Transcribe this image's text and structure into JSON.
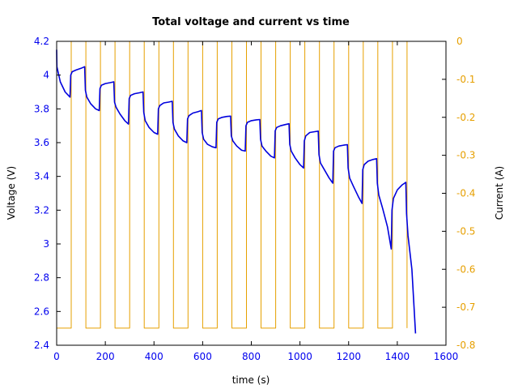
{
  "chart_data": {
    "type": "line",
    "title": "Total voltage and current vs time",
    "xlabel": "time (s)",
    "ylabel": "Voltage (V)",
    "y2label": "Current (A)",
    "xlim": [
      0,
      1600
    ],
    "ylim": [
      2.4,
      4.2
    ],
    "y2lim": [
      -0.8,
      0
    ],
    "x_ticks": [
      0,
      200,
      400,
      600,
      800,
      1000,
      1200,
      1400,
      1600
    ],
    "y_ticks": [
      2.4,
      2.6,
      2.8,
      3,
      3.2,
      3.4,
      3.6,
      3.8,
      4,
      4.2
    ],
    "y2_ticks": [
      -0.8,
      -0.7,
      -0.6,
      -0.5,
      -0.4,
      -0.3,
      -0.2,
      -0.1,
      0
    ],
    "y_tick_labels": [
      "2.4",
      "2.6",
      "2.8",
      "3",
      "3.2",
      "3.4",
      "3.6",
      "3.8",
      "4",
      "4.2"
    ],
    "x_tick_labels": [
      "0",
      "200",
      "400",
      "600",
      "800",
      "1000",
      "1200",
      "1400",
      "1600"
    ],
    "y2_tick_labels": [
      "-0.8",
      "-0.7",
      "-0.6",
      "-0.5",
      "-0.4",
      "-0.3",
      "-0.2",
      "-0.1",
      "0"
    ],
    "grid": false,
    "colors": {
      "voltage": "#0000dd",
      "current": "#e6a000",
      "left_axis": "#0000ee",
      "right_axis": "#e69f00"
    },
    "series": [
      {
        "axis": "left",
        "color": "#0000dd",
        "x": [
          0,
          1,
          15,
          35,
          55,
          58,
          64,
          80,
          100,
          115,
          118,
          124,
          140,
          160,
          175,
          178,
          184,
          200,
          220,
          235,
          238,
          244,
          260,
          280,
          295,
          298,
          304,
          320,
          340,
          355,
          358,
          364,
          380,
          400,
          415,
          418,
          424,
          440,
          460,
          475,
          478,
          484,
          500,
          520,
          535,
          538,
          544,
          560,
          580,
          595,
          598,
          604,
          620,
          640,
          655,
          658,
          664,
          680,
          700,
          715,
          718,
          724,
          740,
          760,
          775,
          778,
          784,
          800,
          820,
          835,
          838,
          844,
          860,
          880,
          895,
          898,
          904,
          920,
          940,
          955,
          958,
          964,
          980,
          1000,
          1015,
          1018,
          1024,
          1040,
          1060,
          1075,
          1078,
          1084,
          1100,
          1120,
          1135,
          1138,
          1144,
          1160,
          1180,
          1195,
          1198,
          1204,
          1220,
          1240,
          1255,
          1258,
          1264,
          1280,
          1300,
          1315,
          1318,
          1324,
          1340,
          1360,
          1375,
          1378,
          1384,
          1400,
          1420,
          1435,
          1438,
          1444,
          1460,
          1475
        ],
        "y": [
          4.15,
          4.05,
          3.96,
          3.9,
          3.87,
          4.0,
          4.02,
          4.03,
          4.04,
          4.05,
          3.91,
          3.87,
          3.83,
          3.8,
          3.79,
          3.92,
          3.94,
          3.95,
          3.955,
          3.96,
          3.84,
          3.81,
          3.77,
          3.73,
          3.71,
          3.86,
          3.88,
          3.89,
          3.895,
          3.9,
          3.78,
          3.73,
          3.69,
          3.66,
          3.65,
          3.8,
          3.82,
          3.835,
          3.84,
          3.845,
          3.72,
          3.68,
          3.64,
          3.61,
          3.6,
          3.74,
          3.76,
          3.775,
          3.783,
          3.79,
          3.66,
          3.62,
          3.59,
          3.575,
          3.57,
          3.72,
          3.74,
          3.75,
          3.755,
          3.757,
          3.64,
          3.61,
          3.58,
          3.555,
          3.55,
          3.7,
          3.72,
          3.73,
          3.735,
          3.737,
          3.62,
          3.58,
          3.55,
          3.52,
          3.51,
          3.67,
          3.69,
          3.7,
          3.707,
          3.712,
          3.59,
          3.55,
          3.51,
          3.47,
          3.45,
          3.61,
          3.64,
          3.66,
          3.665,
          3.668,
          3.53,
          3.48,
          3.44,
          3.39,
          3.36,
          3.55,
          3.57,
          3.58,
          3.585,
          3.588,
          3.45,
          3.39,
          3.34,
          3.28,
          3.24,
          3.44,
          3.47,
          3.49,
          3.5,
          3.505,
          3.36,
          3.29,
          3.21,
          3.1,
          2.97,
          3.2,
          3.27,
          3.32,
          3.35,
          3.365,
          3.18,
          3.05,
          2.85,
          2.47
        ]
      },
      {
        "axis": "right",
        "color": "#e6a000",
        "x": [
          0,
          60,
          60,
          120,
          120,
          180,
          180,
          240,
          240,
          300,
          300,
          360,
          360,
          420,
          420,
          480,
          480,
          540,
          540,
          600,
          600,
          660,
          660,
          720,
          720,
          780,
          780,
          840,
          840,
          900,
          900,
          960,
          960,
          1020,
          1020,
          1080,
          1080,
          1140,
          1140,
          1200,
          1200,
          1260,
          1260,
          1320,
          1320,
          1380,
          1380,
          1440,
          1440
        ],
        "y": [
          -0.755,
          -0.755,
          0,
          0,
          -0.755,
          -0.755,
          0,
          0,
          -0.755,
          -0.755,
          0,
          0,
          -0.755,
          -0.755,
          0,
          0,
          -0.755,
          -0.755,
          0,
          0,
          -0.755,
          -0.755,
          0,
          0,
          -0.755,
          -0.755,
          0,
          0,
          -0.755,
          -0.755,
          0,
          0,
          -0.755,
          -0.755,
          0,
          0,
          -0.755,
          -0.755,
          0,
          0,
          -0.755,
          -0.755,
          0,
          0,
          -0.755,
          -0.755,
          0,
          0,
          -0.755
        ]
      }
    ]
  }
}
